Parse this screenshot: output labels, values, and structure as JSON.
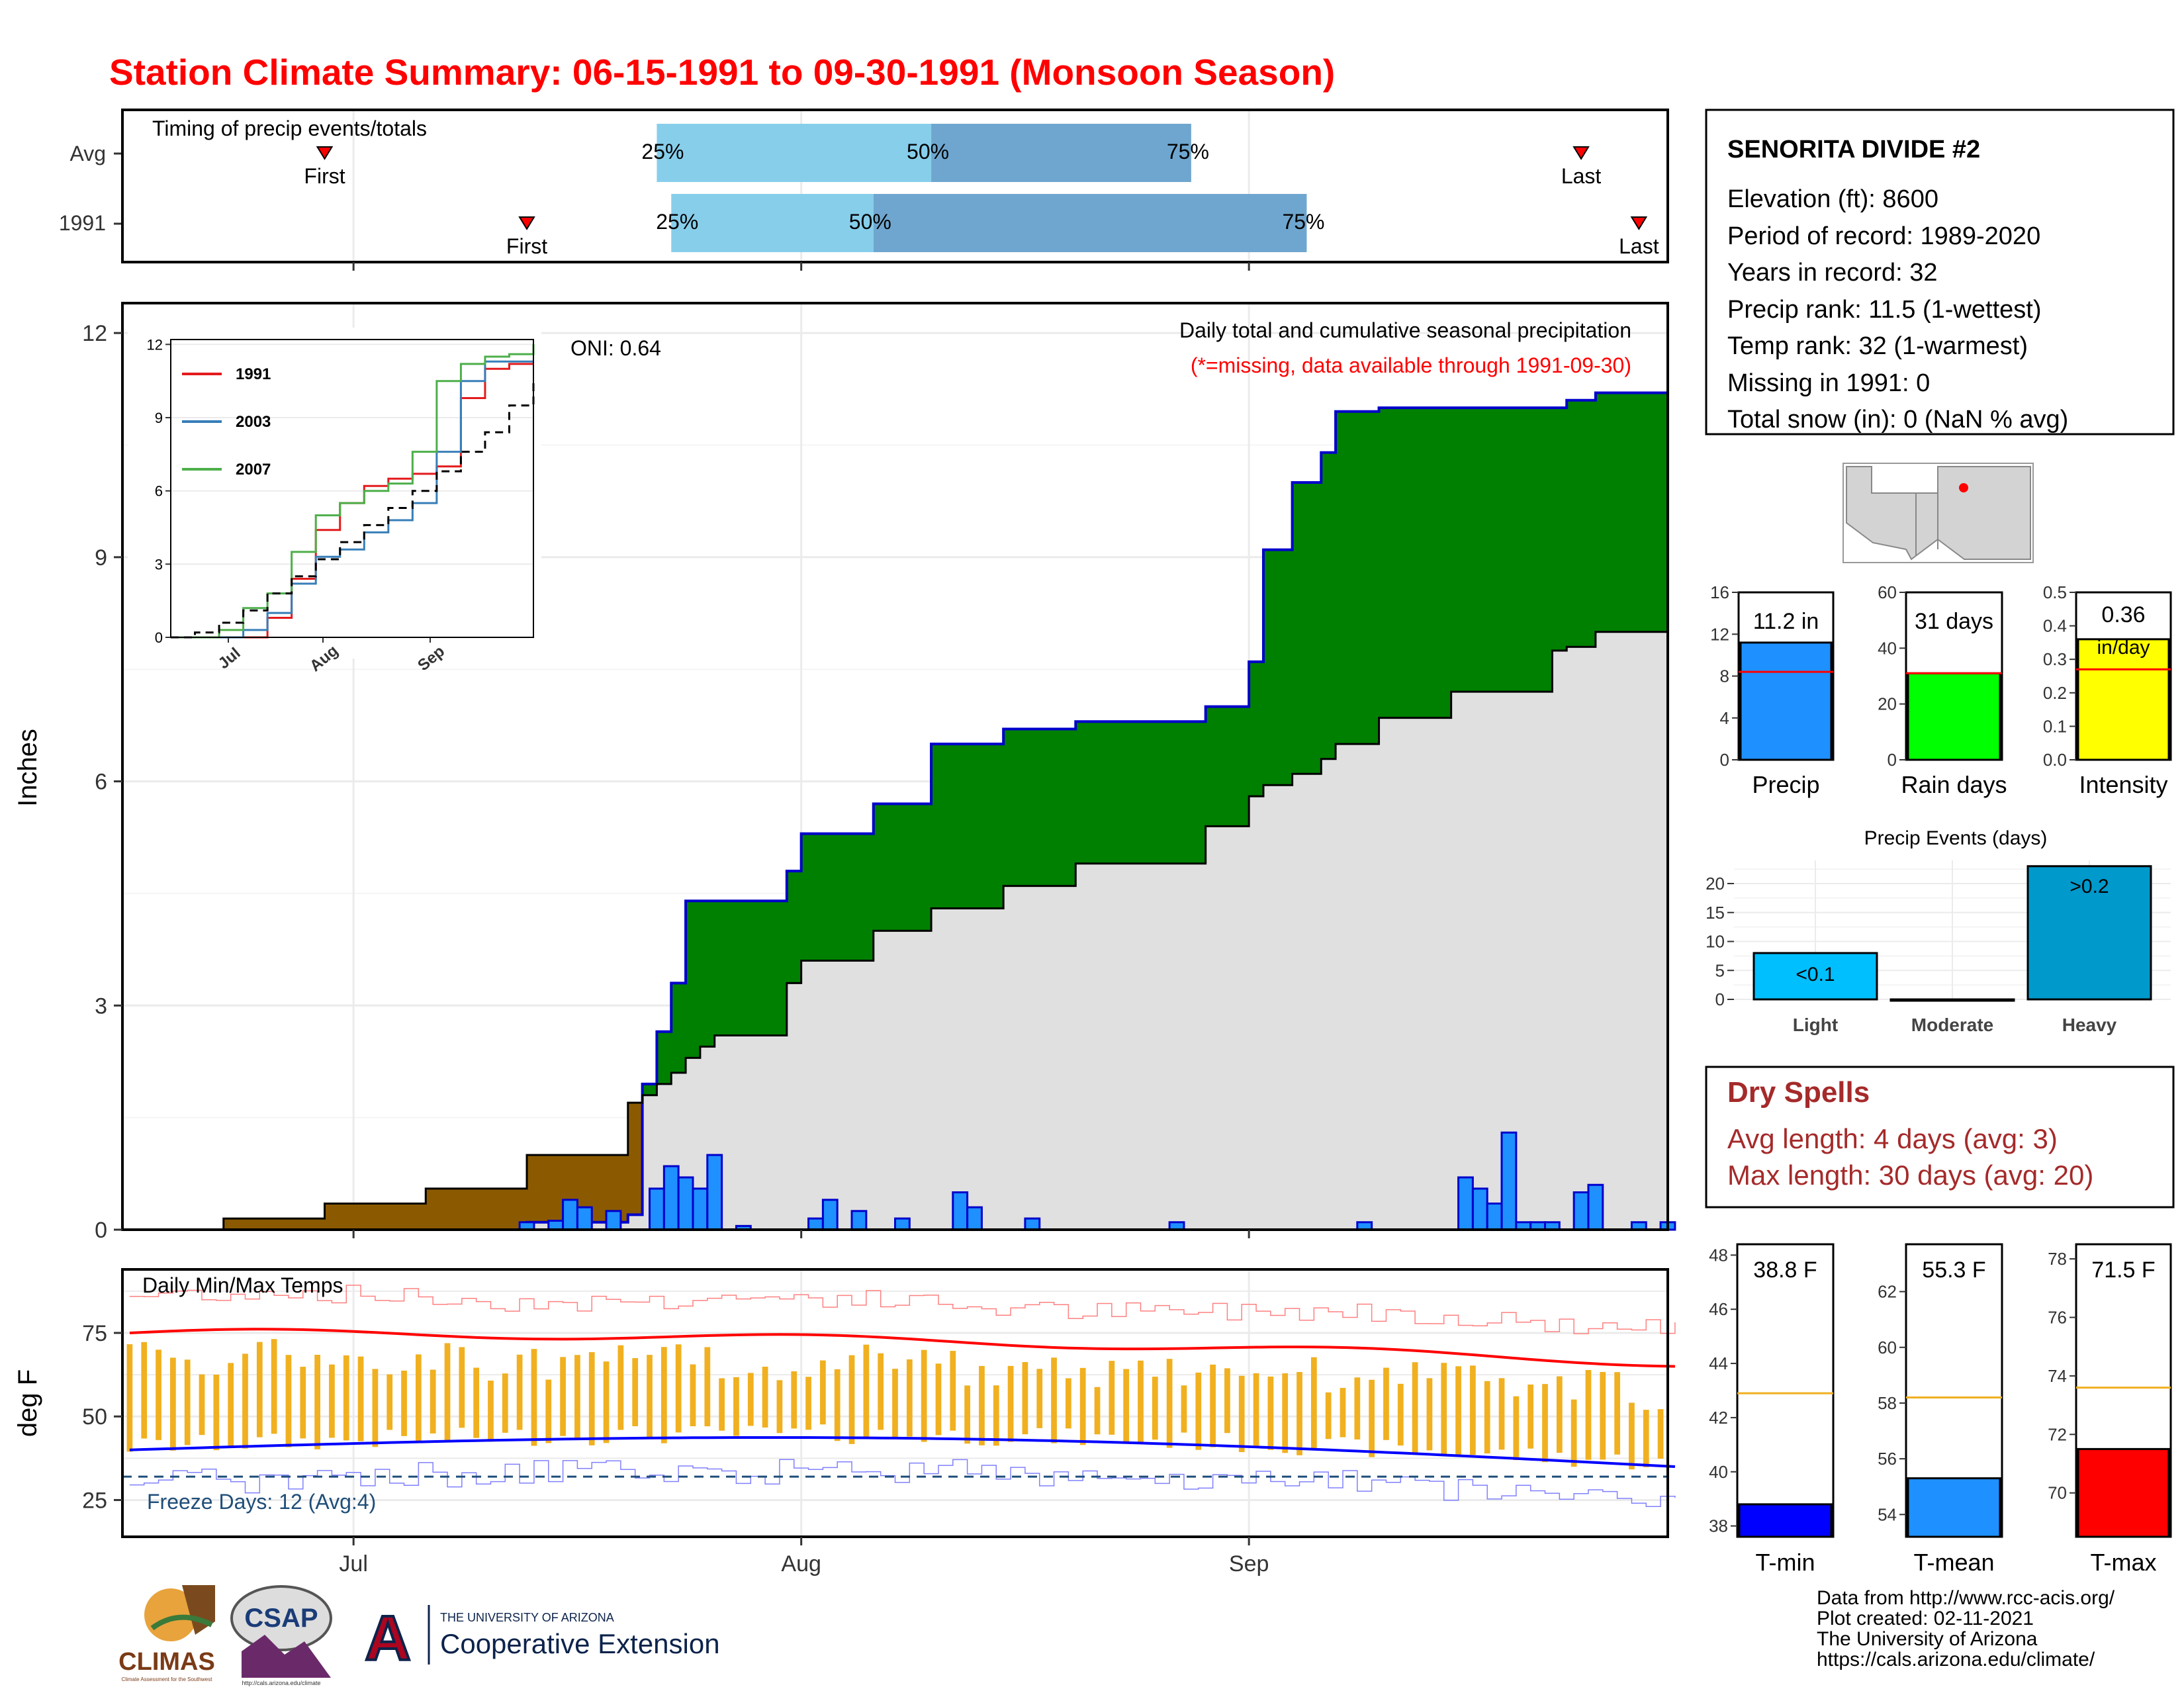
{
  "title": "Station Climate Summary: 06-15-1991 to 09-30-1991 (Monsoon Season)",
  "colors": {
    "title": "#ff0000",
    "precip_surplus": "#008000",
    "precip_deficit": "#8b5a00",
    "avg_cumulative": "#e0e0e0",
    "daily_bar": "#1e90ff",
    "q1": "#87ceeb",
    "q2": "#6fa6cf",
    "dry_spells": "#a52a2a",
    "tmax": "#ff0000",
    "tmin": "#0000ff",
    "temp_range": "#f0b020",
    "intensity": "#ffff00",
    "raindays": "#00ff00",
    "events": "#0099cc",
    "events_light": "#00bfff",
    "freeze": "#1f4e79"
  },
  "timing_panel": {
    "label": "Timing of precip events/totals",
    "rows": [
      {
        "name": "Avg",
        "first": "06-29",
        "last": "09-24",
        "q25": "07-22",
        "q50": "08-10",
        "q75": "08-28"
      },
      {
        "name": "1991",
        "first": "07-13",
        "last": "09-28",
        "q25": "07-23",
        "q50": "08-06",
        "q75": "09-05"
      }
    ],
    "first_label": "First",
    "last_label": "Last",
    "pct_labels": [
      "25%",
      "50%",
      "75%"
    ]
  },
  "precip_panel": {
    "ylabel": "Inches",
    "yticks": [
      "0",
      "3",
      "6",
      "9",
      "12"
    ],
    "oni": "ONI: 0.64",
    "subtitle": "Daily total and cumulative seasonal precipitation",
    "missing_note": "(*=missing, data available through 1991-09-30)",
    "x_tick_labels": [
      "Jul",
      "Aug",
      "Sep"
    ]
  },
  "chart_data": [
    {
      "type": "area",
      "name": "cumulative precipitation",
      "ylim": [
        0,
        12
      ],
      "x_dates": [
        "06-15",
        "06-22",
        "06-29",
        "07-06",
        "07-13",
        "07-20",
        "07-21",
        "07-22",
        "07-23",
        "07-24",
        "07-25",
        "07-26",
        "07-31",
        "08-01",
        "08-06",
        "08-10",
        "08-15",
        "08-20",
        "08-29",
        "09-01",
        "09-02",
        "09-04",
        "09-06",
        "09-07",
        "09-10",
        "09-15",
        "09-22",
        "09-23",
        "09-25",
        "09-30"
      ],
      "series": [
        {
          "name": "1991",
          "values": [
            0,
            0,
            0,
            0,
            0.1,
            0.2,
            1.95,
            2.65,
            3.3,
            4.4,
            4.4,
            4.4,
            4.8,
            5.3,
            5.7,
            6.5,
            6.7,
            6.8,
            7.0,
            7.6,
            9.1,
            10.0,
            10.4,
            10.95,
            11.0,
            11.0,
            11.0,
            11.1,
            11.2,
            11.2
          ]
        },
        {
          "name": "average",
          "values": [
            0,
            0.15,
            0.35,
            0.55,
            1.0,
            1.7,
            1.8,
            1.95,
            2.1,
            2.3,
            2.45,
            2.6,
            3.3,
            3.6,
            4.0,
            4.3,
            4.6,
            4.9,
            5.4,
            5.8,
            5.95,
            6.1,
            6.3,
            6.5,
            6.85,
            7.2,
            7.75,
            7.8,
            8.0,
            8.15
          ]
        }
      ]
    },
    {
      "type": "bar",
      "name": "daily precipitation 1991",
      "ylim": [
        0,
        12
      ],
      "x_dates": [
        "07-13",
        "07-15",
        "07-16",
        "07-17",
        "07-19",
        "07-22",
        "07-23",
        "07-24",
        "07-25",
        "07-26",
        "07-28",
        "08-02",
        "08-03",
        "08-05",
        "08-08",
        "08-12",
        "08-13",
        "08-17",
        "08-27",
        "09-09",
        "09-16",
        "09-17",
        "09-18",
        "09-19",
        "09-20",
        "09-21",
        "09-22",
        "09-24",
        "09-25",
        "09-28",
        "09-30"
      ],
      "values": [
        0.1,
        0.12,
        0.4,
        0.3,
        0.25,
        0.55,
        0.85,
        0.7,
        0.55,
        1.0,
        0.05,
        0.15,
        0.4,
        0.25,
        0.15,
        0.5,
        0.3,
        0.15,
        0.1,
        0.1,
        0.7,
        0.55,
        0.35,
        1.3,
        0.1,
        0.1,
        0.1,
        0.5,
        0.6,
        0.1,
        0.1
      ]
    },
    {
      "type": "line",
      "name": "inset cumulative",
      "ylim": [
        0,
        12
      ],
      "x_tick_labels": [
        "Jul",
        "Aug",
        "Sep"
      ],
      "y_tick_labels": [
        "0",
        "3",
        "6",
        "9",
        "12"
      ],
      "series": [
        {
          "name": "1991",
          "color": "#e41a1c",
          "values": [
            0,
            0,
            0,
            0,
            0.8,
            2.4,
            4.4,
            5.5,
            6.2,
            6.5,
            6.7,
            7.0,
            9.8,
            11.0,
            11.2,
            11.2
          ]
        },
        {
          "name": "2003",
          "color": "#377eb8",
          "values": [
            0,
            0,
            0,
            0.3,
            1.0,
            2.2,
            3.3,
            3.6,
            4.3,
            4.8,
            5.5,
            7.6,
            10.5,
            11.3,
            11.3,
            11.3
          ]
        },
        {
          "name": "2007",
          "color": "#4daf4a",
          "values": [
            0,
            0,
            0.3,
            1.2,
            1.8,
            3.5,
            5.0,
            5.5,
            6.0,
            6.3,
            7.6,
            10.5,
            11.2,
            11.5,
            11.6,
            12.0
          ]
        },
        {
          "name": "average",
          "color": "#000000",
          "values": [
            0,
            0.2,
            0.6,
            1.1,
            1.8,
            2.5,
            3.2,
            3.9,
            4.6,
            5.3,
            6.0,
            6.8,
            7.6,
            8.4,
            9.5,
            10.5
          ]
        }
      ]
    },
    {
      "type": "bar",
      "name": "Precip",
      "value": 11.2,
      "avg": 8.4,
      "ylim": [
        0,
        16
      ],
      "ticks": [
        "0",
        "4",
        "8",
        "12",
        "16"
      ],
      "label": "11.2 in",
      "color": "#1e90ff"
    },
    {
      "type": "bar",
      "name": "Rain days",
      "value": 31,
      "avg": 31,
      "ylim": [
        0,
        60
      ],
      "ticks": [
        "0",
        "20",
        "40",
        "60"
      ],
      "label": "31 days",
      "color": "#00ff00"
    },
    {
      "type": "bar",
      "name": "Intensity",
      "value": 0.36,
      "avg": 0.27,
      "ylim": [
        0,
        0.5
      ],
      "ticks": [
        "0.0",
        "0.1",
        "0.2",
        "0.3",
        "0.4",
        "0.5"
      ],
      "label": "0.36",
      "label2": "in/day",
      "color": "#ffff00"
    },
    {
      "type": "bar",
      "name": "Precip Events (days)",
      "categories": [
        "Light",
        "Moderate",
        "Heavy"
      ],
      "values": [
        8,
        0,
        23
      ],
      "bar_labels": [
        "<0.1",
        "",
        ">0.2"
      ],
      "ylim": [
        0,
        24
      ],
      "ticks": [
        "0",
        "5",
        "10",
        "15",
        "20"
      ]
    },
    {
      "type": "line",
      "name": "Daily Min/Max Temps",
      "ylabel": "deg F",
      "ylim": [
        14,
        94
      ],
      "yticks": [
        "25",
        "50",
        "75"
      ],
      "freeze_line": 32,
      "tmax_avg_start": 75,
      "tmax_avg_end": 66,
      "tmin_avg_start": 40,
      "tmin_avg_end": 35,
      "freeze_label": "Freeze Days: 12 (Avg:4)"
    },
    {
      "type": "bar",
      "name": "T-min",
      "value": 38.8,
      "avg": 42.9,
      "ylim": [
        37.6,
        48.4
      ],
      "ticks": [
        "38",
        "40",
        "42",
        "44",
        "46",
        "48"
      ],
      "label": "38.8 F",
      "color": "#0000ff"
    },
    {
      "type": "bar",
      "name": "T-mean",
      "value": 55.3,
      "avg": 58.2,
      "ylim": [
        53.2,
        63.7
      ],
      "ticks": [
        "54",
        "56",
        "58",
        "60",
        "62"
      ],
      "label": "55.3 F",
      "color": "#1e90ff"
    },
    {
      "type": "bar",
      "name": "T-max",
      "value": 71.5,
      "avg": 73.6,
      "ylim": [
        68.5,
        78.5
      ],
      "ticks": [
        "70",
        "72",
        "74",
        "76",
        "78"
      ],
      "label": "71.5 F",
      "color": "#ff0000"
    }
  ],
  "station_info": {
    "name": "SENORITA DIVIDE #2",
    "elevation": "Elevation (ft): 8600",
    "period": "Period of record: 1989-2020",
    "years": "Years in record: 32",
    "precip_rank": "Precip rank: 11.5 (1-wettest)",
    "temp_rank": "Temp rank: 32 (1-warmest)",
    "missing": "Missing in 1991: 0",
    "snow": "Total snow (in): 0 (NaN % avg)"
  },
  "dry_spells": {
    "title": "Dry Spells",
    "avg": "Avg length: 4 days (avg: 3)",
    "max": "Max length: 30 days (avg: 20)"
  },
  "temp_panel": {
    "label": "Daily Min/Max Temps",
    "ylabel": "deg F",
    "x_tick_labels": [
      "Jul",
      "Aug",
      "Sep"
    ]
  },
  "footer": {
    "lines": [
      "Data from http://www.rcc-acis.org/",
      "Plot created: 02-11-2021",
      "The University of Arizona",
      "https://cals.arizona.edu/climate/"
    ],
    "logos": [
      "CLIMAS",
      "CSAP",
      "A",
      "THE UNIVERSITY OF ARIZONA",
      "Cooperative Extension",
      "http://cals.arizona.edu/climate",
      "Climate Assessment for the Southwest"
    ]
  }
}
